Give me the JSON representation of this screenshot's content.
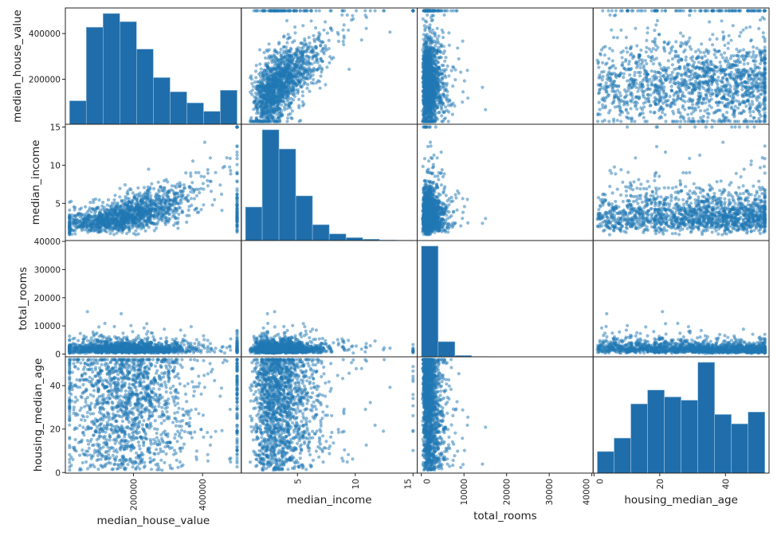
{
  "chart_data": {
    "type": "scatter_matrix",
    "grid": false,
    "marker_color": "#1f77b4",
    "hist_color": "#1f6eab",
    "marker_alpha": 0.5,
    "variables": [
      {
        "name": "median_house_value",
        "lim": [
          2875,
          512126
        ],
        "ticks": [
          200000,
          400000
        ],
        "hist_range": [
          14999,
          500001
        ],
        "hist_counts": [
          890,
          3680,
          4200,
          3890,
          2850,
          1770,
          1230,
          810,
          490,
          1290
        ]
      },
      {
        "name": "median_income",
        "lim": [
          0.137,
          15.36
        ],
        "ticks": [
          5,
          10,
          15
        ],
        "hist_range": [
          0.4999,
          15.0001
        ],
        "hist_counts": [
          1500,
          4960,
          4100,
          2000,
          710,
          300,
          130,
          60,
          25,
          12
        ]
      },
      {
        "name": "total_rooms",
        "lim": [
          -981,
          40303
        ],
        "ticks": [
          0,
          10000,
          20000,
          30000,
          40000
        ],
        "hist_range": [
          2,
          39320
        ],
        "hist_counts": [
          17900,
          2450,
          215,
          45,
          15,
          5,
          3,
          1,
          0,
          3
        ]
      },
      {
        "name": "housing_median_age",
        "lim": [
          -0.275,
          53.275
        ],
        "ticks": [
          0,
          20,
          40
        ],
        "hist_range": [
          1,
          52
        ],
        "hist_counts": [
          530,
          860,
          1700,
          2040,
          1870,
          1790,
          2720,
          1440,
          1210,
          1500
        ]
      }
    ]
  }
}
